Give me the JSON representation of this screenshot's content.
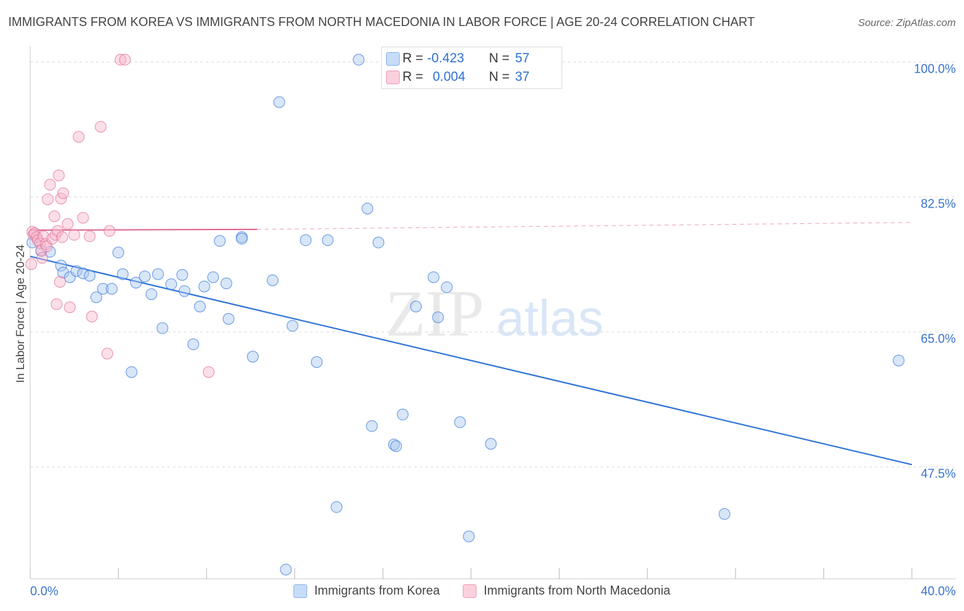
{
  "header": {
    "title": "IMMIGRANTS FROM KOREA VS IMMIGRANTS FROM NORTH MACEDONIA IN LABOR FORCE | AGE 20-24 CORRELATION CHART",
    "source": "Source: ZipAtlas.com"
  },
  "watermark": {
    "zip": "ZIP",
    "atlas": "atlas"
  },
  "stats": [
    {
      "r_label": "R =",
      "r_value": "-0.423",
      "n_label": "N =",
      "n_value": "57",
      "color": "#a8c8f0"
    },
    {
      "r_label": "R =",
      "r_value": "0.004",
      "n_label": "N =",
      "n_value": "37",
      "color": "#f6b8cc"
    }
  ],
  "legend": [
    {
      "label": "Immigrants from Korea",
      "color": "#a8c8f0"
    },
    {
      "label": "Immigrants from North Macedonia",
      "color": "#f6b8cc"
    }
  ],
  "chart_data": {
    "type": "scatter",
    "title": "IMMIGRANTS FROM KOREA VS IMMIGRANTS FROM NORTH MACEDONIA IN LABOR FORCE | AGE 20-24 CORRELATION CHART",
    "xlabel": "",
    "ylabel": "In Labor Force | Age 20-24",
    "xlim": [
      0,
      40
    ],
    "ylim": [
      33,
      102
    ],
    "x_tick_labels": [
      {
        "value": 0,
        "label": "0.0%"
      },
      {
        "value": 40,
        "label": "40.0%"
      }
    ],
    "y_tick_labels": [
      {
        "value": 100,
        "label": "100.0%"
      },
      {
        "value": 82.5,
        "label": "82.5%"
      },
      {
        "value": 65,
        "label": "65.0%"
      },
      {
        "value": 47.5,
        "label": "47.5%"
      }
    ],
    "grid": true,
    "series": [
      {
        "name": "Immigrants from Korea",
        "color": "#2f72d6",
        "fill": "#a8c8f0",
        "trend": {
          "x": [
            0,
            40
          ],
          "y": [
            74.8,
            47.8
          ],
          "dashed_to": null
        },
        "points": [
          [
            0.1,
            76.6
          ],
          [
            0.9,
            75.4
          ],
          [
            1.4,
            73.6
          ],
          [
            1.5,
            72.7
          ],
          [
            1.8,
            72.1
          ],
          [
            2.1,
            72.9
          ],
          [
            2.4,
            72.6
          ],
          [
            2.7,
            72.3
          ],
          [
            3.0,
            69.5
          ],
          [
            3.3,
            70.6
          ],
          [
            3.7,
            70.6
          ],
          [
            4.0,
            75.3
          ],
          [
            4.2,
            72.5
          ],
          [
            4.6,
            59.8
          ],
          [
            4.8,
            71.4
          ],
          [
            5.2,
            72.2
          ],
          [
            5.5,
            69.9
          ],
          [
            5.8,
            72.5
          ],
          [
            6.0,
            65.5
          ],
          [
            6.4,
            71.2
          ],
          [
            6.9,
            72.4
          ],
          [
            7.0,
            70.3
          ],
          [
            7.4,
            63.4
          ],
          [
            7.7,
            68.3
          ],
          [
            7.9,
            70.9
          ],
          [
            8.3,
            72.1
          ],
          [
            8.9,
            71.3
          ],
          [
            8.6,
            76.8
          ],
          [
            9.0,
            66.7
          ],
          [
            9.6,
            77.3
          ],
          [
            9.6,
            77.1
          ],
          [
            10.1,
            61.8
          ],
          [
            11.0,
            71.7
          ],
          [
            11.3,
            94.8
          ],
          [
            11.6,
            34.2
          ],
          [
            11.9,
            65.8
          ],
          [
            12.5,
            76.9
          ],
          [
            13.0,
            61.1
          ],
          [
            13.5,
            76.9
          ],
          [
            13.9,
            42.3
          ],
          [
            14.9,
            100.3
          ],
          [
            15.3,
            81.0
          ],
          [
            15.5,
            52.8
          ],
          [
            15.8,
            76.6
          ],
          [
            16.5,
            50.4
          ],
          [
            16.6,
            50.2
          ],
          [
            16.9,
            54.3
          ],
          [
            17.5,
            68.3
          ],
          [
            18.3,
            72.1
          ],
          [
            18.5,
            66.9
          ],
          [
            18.9,
            70.8
          ],
          [
            19.5,
            53.3
          ],
          [
            19.9,
            38.5
          ],
          [
            20.9,
            50.5
          ],
          [
            31.5,
            41.4
          ],
          [
            39.4,
            61.3
          ],
          [
            0.5,
            75.5
          ]
        ]
      },
      {
        "name": "Immigrants from North Macedonia",
        "color": "#e06a93",
        "fill": "#f6b8cc",
        "trend": {
          "x": [
            0,
            10.3
          ],
          "y": [
            78.2,
            78.3
          ],
          "dashed_to": [
            40,
            79.2
          ]
        },
        "points": [
          [
            0.05,
            73.8
          ],
          [
            0.1,
            78.0
          ],
          [
            0.15,
            77.6
          ],
          [
            0.2,
            77.8
          ],
          [
            0.3,
            77.3
          ],
          [
            0.35,
            76.9
          ],
          [
            0.45,
            76.5
          ],
          [
            0.5,
            75.6
          ],
          [
            0.55,
            74.6
          ],
          [
            0.6,
            77.4
          ],
          [
            0.7,
            76.4
          ],
          [
            0.75,
            76.1
          ],
          [
            0.8,
            82.2
          ],
          [
            0.9,
            84.1
          ],
          [
            1.0,
            77.1
          ],
          [
            1.1,
            80.0
          ],
          [
            1.15,
            77.6
          ],
          [
            1.2,
            68.6
          ],
          [
            1.25,
            78.1
          ],
          [
            1.3,
            85.3
          ],
          [
            1.35,
            71.5
          ],
          [
            1.4,
            82.3
          ],
          [
            1.45,
            77.3
          ],
          [
            1.5,
            83.0
          ],
          [
            1.7,
            79.0
          ],
          [
            1.8,
            68.2
          ],
          [
            2.0,
            77.6
          ],
          [
            2.2,
            90.3
          ],
          [
            2.4,
            79.8
          ],
          [
            2.8,
            67.0
          ],
          [
            3.2,
            91.6
          ],
          [
            3.5,
            62.2
          ],
          [
            3.6,
            78.1
          ],
          [
            4.1,
            100.3
          ],
          [
            4.3,
            100.3
          ],
          [
            8.1,
            59.8
          ],
          [
            2.7,
            77.4
          ]
        ]
      }
    ]
  }
}
